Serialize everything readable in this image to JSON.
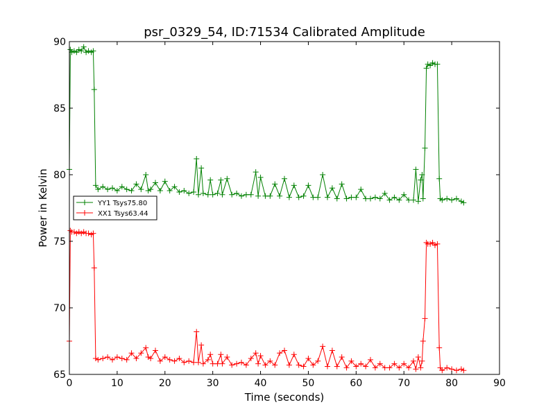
{
  "chart_data": {
    "type": "line",
    "title": "psr_0329_54, ID:71534 Calibrated Amplitude",
    "xlabel": "Time (seconds)",
    "ylabel": "Power in Kelvin",
    "xlim": [
      0,
      90
    ],
    "ylim": [
      65,
      90
    ],
    "xticks": [
      0,
      10,
      20,
      30,
      40,
      50,
      60,
      70,
      80,
      90
    ],
    "yticks": [
      65,
      70,
      75,
      80,
      85,
      90
    ],
    "grid": false,
    "legend_position": "left",
    "marker": "plus",
    "series": [
      {
        "name": "YY1 Tsys75.80",
        "color": "#008000",
        "points": [
          [
            0.0,
            80.4
          ],
          [
            0.2,
            89.4
          ],
          [
            0.5,
            89.2
          ],
          [
            1.0,
            89.3
          ],
          [
            1.5,
            89.2
          ],
          [
            2.0,
            89.4
          ],
          [
            2.5,
            89.3
          ],
          [
            3.0,
            89.6
          ],
          [
            3.5,
            89.2
          ],
          [
            4.0,
            89.3
          ],
          [
            4.6,
            89.2
          ],
          [
            5.0,
            89.3
          ],
          [
            5.2,
            86.4
          ],
          [
            5.5,
            79.2
          ],
          [
            6.0,
            78.9
          ],
          [
            7.0,
            79.1
          ],
          [
            8.0,
            78.9
          ],
          [
            9.0,
            79.0
          ],
          [
            10.0,
            78.8
          ],
          [
            11.0,
            79.1
          ],
          [
            12.0,
            78.9
          ],
          [
            13.0,
            78.8
          ],
          [
            14.0,
            79.3
          ],
          [
            15.0,
            78.9
          ],
          [
            16.0,
            80.0
          ],
          [
            16.5,
            78.8
          ],
          [
            17.0,
            78.9
          ],
          [
            18.0,
            79.4
          ],
          [
            19.0,
            78.8
          ],
          [
            20.0,
            79.5
          ],
          [
            21.0,
            78.8
          ],
          [
            22.0,
            79.1
          ],
          [
            23.0,
            78.7
          ],
          [
            24.0,
            78.8
          ],
          [
            25.0,
            78.6
          ],
          [
            26.0,
            78.7
          ],
          [
            26.6,
            81.2
          ],
          [
            27.0,
            78.5
          ],
          [
            27.6,
            80.5
          ],
          [
            28.0,
            78.6
          ],
          [
            29.0,
            78.5
          ],
          [
            29.5,
            79.6
          ],
          [
            30.0,
            78.5
          ],
          [
            31.0,
            78.6
          ],
          [
            31.7,
            79.6
          ],
          [
            32.0,
            78.5
          ],
          [
            33.0,
            79.7
          ],
          [
            34.0,
            78.5
          ],
          [
            35.0,
            78.6
          ],
          [
            36.0,
            78.4
          ],
          [
            37.0,
            78.5
          ],
          [
            38.0,
            78.5
          ],
          [
            39.0,
            80.2
          ],
          [
            39.5,
            78.4
          ],
          [
            40.0,
            79.8
          ],
          [
            41.0,
            78.4
          ],
          [
            42.0,
            78.4
          ],
          [
            43.0,
            79.3
          ],
          [
            44.0,
            78.4
          ],
          [
            45.0,
            79.7
          ],
          [
            46.0,
            78.3
          ],
          [
            47.0,
            79.2
          ],
          [
            48.0,
            78.3
          ],
          [
            49.0,
            78.4
          ],
          [
            50.0,
            79.2
          ],
          [
            51.0,
            78.3
          ],
          [
            52.0,
            78.3
          ],
          [
            53.0,
            80.0
          ],
          [
            54.0,
            78.3
          ],
          [
            55.0,
            79.0
          ],
          [
            56.0,
            78.2
          ],
          [
            57.0,
            79.3
          ],
          [
            58.0,
            78.2
          ],
          [
            59.0,
            78.3
          ],
          [
            60.0,
            78.3
          ],
          [
            61.0,
            78.9
          ],
          [
            62.0,
            78.2
          ],
          [
            63.0,
            78.2
          ],
          [
            64.0,
            78.3
          ],
          [
            65.0,
            78.2
          ],
          [
            66.0,
            78.6
          ],
          [
            67.0,
            78.1
          ],
          [
            68.0,
            78.3
          ],
          [
            69.0,
            78.1
          ],
          [
            70.0,
            78.5
          ],
          [
            71.0,
            78.1
          ],
          [
            72.0,
            78.1
          ],
          [
            72.5,
            80.4
          ],
          [
            73.0,
            78.0
          ],
          [
            73.5,
            79.6
          ],
          [
            73.8,
            80.0
          ],
          [
            74.0,
            78.2
          ],
          [
            74.4,
            82.0
          ],
          [
            74.7,
            88.0
          ],
          [
            75.0,
            88.3
          ],
          [
            75.5,
            88.2
          ],
          [
            76.0,
            88.4
          ],
          [
            76.5,
            88.3
          ],
          [
            77.0,
            88.3
          ],
          [
            77.4,
            79.7
          ],
          [
            77.6,
            78.2
          ],
          [
            78.0,
            78.1
          ],
          [
            79.0,
            78.2
          ],
          [
            80.0,
            78.1
          ],
          [
            81.0,
            78.2
          ],
          [
            82.0,
            78.0
          ],
          [
            82.5,
            77.9
          ]
        ]
      },
      {
        "name": "XX1 Tsys63.44",
        "color": "#ff0000",
        "points": [
          [
            0.0,
            67.5
          ],
          [
            0.2,
            75.8
          ],
          [
            0.5,
            75.7
          ],
          [
            1.0,
            75.7
          ],
          [
            1.5,
            75.6
          ],
          [
            2.0,
            75.7
          ],
          [
            2.5,
            75.6
          ],
          [
            3.0,
            75.7
          ],
          [
            3.5,
            75.6
          ],
          [
            4.0,
            75.6
          ],
          [
            4.6,
            75.5
          ],
          [
            5.0,
            75.6
          ],
          [
            5.2,
            73.0
          ],
          [
            5.5,
            66.2
          ],
          [
            6.0,
            66.1
          ],
          [
            7.0,
            66.2
          ],
          [
            8.0,
            66.3
          ],
          [
            9.0,
            66.1
          ],
          [
            10.0,
            66.3
          ],
          [
            11.0,
            66.2
          ],
          [
            12.0,
            66.1
          ],
          [
            13.0,
            66.6
          ],
          [
            14.0,
            66.2
          ],
          [
            15.0,
            66.6
          ],
          [
            16.0,
            67.0
          ],
          [
            16.5,
            66.3
          ],
          [
            17.0,
            66.2
          ],
          [
            18.0,
            66.8
          ],
          [
            19.0,
            66.0
          ],
          [
            20.0,
            66.3
          ],
          [
            21.0,
            66.1
          ],
          [
            22.0,
            66.0
          ],
          [
            23.0,
            66.2
          ],
          [
            24.0,
            65.9
          ],
          [
            25.0,
            66.0
          ],
          [
            26.0,
            65.9
          ],
          [
            26.6,
            68.2
          ],
          [
            27.0,
            65.9
          ],
          [
            27.6,
            67.2
          ],
          [
            28.0,
            65.8
          ],
          [
            29.0,
            66.1
          ],
          [
            29.5,
            66.5
          ],
          [
            30.0,
            65.8
          ],
          [
            31.0,
            65.8
          ],
          [
            31.7,
            66.5
          ],
          [
            32.0,
            65.8
          ],
          [
            33.0,
            66.3
          ],
          [
            34.0,
            65.7
          ],
          [
            35.0,
            65.8
          ],
          [
            36.0,
            65.9
          ],
          [
            37.0,
            65.7
          ],
          [
            38.0,
            66.2
          ],
          [
            39.0,
            66.6
          ],
          [
            39.5,
            65.8
          ],
          [
            40.0,
            66.4
          ],
          [
            41.0,
            65.7
          ],
          [
            42.0,
            66.0
          ],
          [
            43.0,
            65.7
          ],
          [
            44.0,
            66.6
          ],
          [
            45.0,
            66.8
          ],
          [
            46.0,
            65.7
          ],
          [
            47.0,
            66.5
          ],
          [
            48.0,
            65.7
          ],
          [
            49.0,
            65.6
          ],
          [
            50.0,
            66.2
          ],
          [
            51.0,
            65.7
          ],
          [
            52.0,
            66.0
          ],
          [
            53.0,
            67.1
          ],
          [
            54.0,
            65.6
          ],
          [
            55.0,
            66.8
          ],
          [
            56.0,
            65.6
          ],
          [
            57.0,
            66.3
          ],
          [
            58.0,
            65.5
          ],
          [
            59.0,
            66.0
          ],
          [
            60.0,
            65.6
          ],
          [
            61.0,
            65.8
          ],
          [
            62.0,
            65.6
          ],
          [
            63.0,
            66.1
          ],
          [
            64.0,
            65.5
          ],
          [
            65.0,
            65.8
          ],
          [
            66.0,
            65.5
          ],
          [
            67.0,
            65.5
          ],
          [
            68.0,
            65.8
          ],
          [
            69.0,
            65.5
          ],
          [
            70.0,
            65.8
          ],
          [
            71.0,
            65.5
          ],
          [
            72.0,
            66.0
          ],
          [
            72.5,
            65.4
          ],
          [
            73.0,
            66.3
          ],
          [
            73.5,
            65.5
          ],
          [
            73.8,
            66.0
          ],
          [
            74.0,
            67.5
          ],
          [
            74.4,
            69.2
          ],
          [
            74.7,
            74.9
          ],
          [
            75.0,
            74.8
          ],
          [
            75.5,
            74.8
          ],
          [
            76.0,
            74.9
          ],
          [
            76.5,
            74.7
          ],
          [
            77.0,
            74.8
          ],
          [
            77.4,
            67.0
          ],
          [
            77.6,
            65.5
          ],
          [
            78.0,
            65.3
          ],
          [
            79.0,
            65.5
          ],
          [
            80.0,
            65.4
          ],
          [
            81.0,
            65.3
          ],
          [
            82.0,
            65.4
          ],
          [
            82.5,
            65.3
          ]
        ]
      }
    ]
  }
}
